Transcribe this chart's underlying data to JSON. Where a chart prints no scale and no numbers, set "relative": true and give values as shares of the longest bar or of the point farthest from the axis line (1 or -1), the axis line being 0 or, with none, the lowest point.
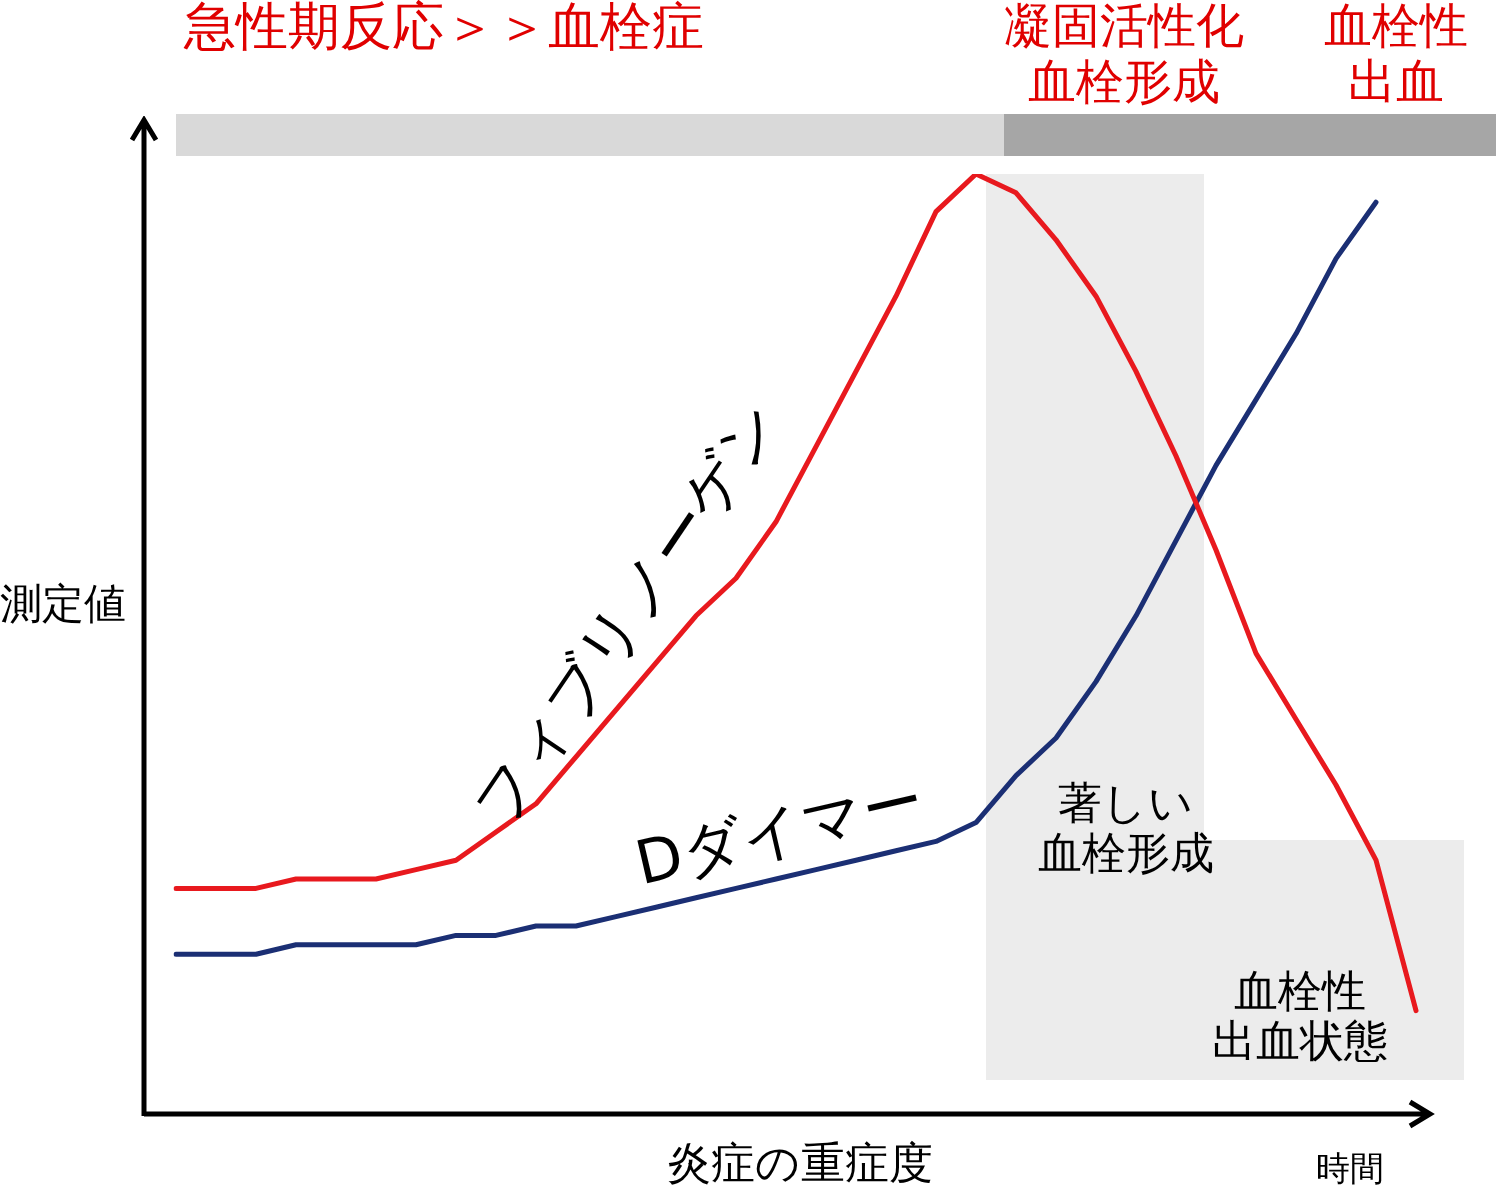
{
  "chart_data": {
    "type": "line",
    "relative": true,
    "legend": false,
    "xlabel": "炎症の重症度",
    "ylabel": "測定値",
    "categories": [
      null,
      null,
      null,
      null,
      null,
      null,
      null,
      null,
      null,
      null,
      null,
      null,
      null,
      null,
      null,
      null,
      null,
      null,
      null,
      null,
      null,
      null,
      null,
      null,
      null,
      null,
      null,
      null,
      null,
      null,
      null,
      null,
      null
    ],
    "series": [
      {
        "name": "フィブリノーゲン",
        "color": "#e8191e",
        "values": [
          0.24,
          0.24,
          0.24,
          0.25,
          0.25,
          0.25,
          0.26,
          0.27,
          0.3,
          0.33,
          0.38,
          0.43,
          0.48,
          0.53,
          0.57,
          0.63,
          0.71,
          0.79,
          0.87,
          0.96,
          1,
          0.98,
          0.93,
          0.87,
          0.79,
          0.7,
          0.6,
          0.49,
          0.42,
          0.35,
          0.27,
          0.11,
          null
        ]
      },
      {
        "name": "Dダイマー",
        "color": "#1b2f74",
        "values": [
          0.17,
          0.17,
          0.17,
          0.18,
          0.18,
          0.18,
          0.18,
          0.19,
          0.19,
          0.2,
          0.2,
          0.21,
          0.22,
          0.23,
          0.24,
          0.25,
          0.26,
          0.27,
          0.28,
          0.29,
          0.31,
          0.36,
          0.4,
          0.46,
          0.53,
          0.61,
          0.69,
          0.76,
          0.83,
          0.91,
          0.97,
          null,
          null
        ]
      }
    ],
    "annotations": [
      "急性期反応＞＞血栓症",
      "凝固活性化血栓形成",
      "血栓性出血",
      "著しい血栓形成",
      "血栓性出血状態",
      "時間"
    ]
  }
}
